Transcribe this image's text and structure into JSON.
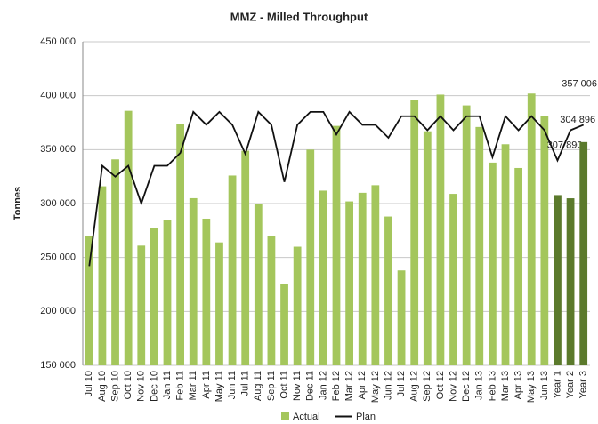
{
  "chart_data": {
    "type": "bar_line",
    "title": "MMZ - Milled Throughput",
    "ylabel": "Tonnes",
    "categories": [
      "Jul 10",
      "Aug 10",
      "Sep 10",
      "Oct 10",
      "Nov 10",
      "Dec 10",
      "Jan 11",
      "Feb 11",
      "Mar 11",
      "Apr 11",
      "May 11",
      "Jun 11",
      "Jul 11",
      "Aug 11",
      "Sep 11",
      "Oct 11",
      "Nov 11",
      "Dec 11",
      "Jan 12",
      "Feb 12",
      "Mar 12",
      "Apr 12",
      "May 12",
      "Jun 12",
      "Jul 12",
      "Aug 12",
      "Sep 12",
      "Oct 12",
      "Nov 12",
      "Dec 12",
      "Jan 13",
      "Feb 13",
      "Mar 13",
      "Apr 13",
      "May 13",
      "Jun 13",
      "Year 1",
      "Year 2",
      "Year 3"
    ],
    "series": [
      {
        "name": "Actual",
        "type": "bar",
        "color": "#a4c65c",
        "colors": [
          "#a4c65c",
          "#a4c65c",
          "#a4c65c",
          "#a4c65c",
          "#a4c65c",
          "#a4c65c",
          "#a4c65c",
          "#a4c65c",
          "#a4c65c",
          "#a4c65c",
          "#a4c65c",
          "#a4c65c",
          "#a4c65c",
          "#a4c65c",
          "#a4c65c",
          "#a4c65c",
          "#a4c65c",
          "#a4c65c",
          "#a4c65c",
          "#a4c65c",
          "#a4c65c",
          "#a4c65c",
          "#a4c65c",
          "#a4c65c",
          "#a4c65c",
          "#a4c65c",
          "#a4c65c",
          "#a4c65c",
          "#a4c65c",
          "#a4c65c",
          "#a4c65c",
          "#a4c65c",
          "#a4c65c",
          "#a4c65c",
          "#a4c65c",
          "#a4c65c",
          "#5b7a2c",
          "#5b7a2c",
          "#5b7a2c"
        ],
        "values": [
          270000,
          316000,
          341000,
          386000,
          261000,
          277000,
          285000,
          374000,
          305000,
          286000,
          264000,
          326000,
          349000,
          300000,
          270000,
          225000,
          260000,
          350000,
          312000,
          372000,
          302000,
          310000,
          317000,
          288000,
          238000,
          396000,
          367000,
          401000,
          309000,
          391000,
          371000,
          338000,
          355000,
          333000,
          402000,
          381000,
          307890,
          304896,
          357006
        ],
        "value_labels": [
          null,
          null,
          null,
          null,
          null,
          null,
          null,
          null,
          null,
          null,
          null,
          null,
          null,
          null,
          null,
          null,
          null,
          null,
          null,
          null,
          null,
          null,
          null,
          null,
          null,
          null,
          null,
          null,
          null,
          null,
          null,
          null,
          null,
          null,
          null,
          null,
          "307 890",
          "304 896",
          "357 006"
        ]
      },
      {
        "name": "Plan",
        "type": "line",
        "color": "#111111",
        "values": [
          242000,
          335000,
          325000,
          335000,
          300000,
          335000,
          335000,
          347000,
          385000,
          373000,
          385000,
          373000,
          346000,
          385000,
          373000,
          320000,
          373000,
          385000,
          385000,
          364000,
          385000,
          373000,
          373000,
          361000,
          381000,
          381000,
          368000,
          381000,
          368000,
          381000,
          381000,
          343000,
          381000,
          368000,
          381000,
          368000,
          340000,
          368000,
          373000
        ]
      }
    ],
    "ylim": [
      150000,
      450000
    ],
    "yticks": [
      {
        "value": 150000,
        "label": "150 000"
      },
      {
        "value": 200000,
        "label": "200 000"
      },
      {
        "value": 250000,
        "label": "250 000"
      },
      {
        "value": 300000,
        "label": "300 000"
      },
      {
        "value": 350000,
        "label": "350 000"
      },
      {
        "value": 400000,
        "label": "400 000"
      },
      {
        "value": 450000,
        "label": "450 000"
      }
    ],
    "grid": true,
    "legend": "bottom"
  }
}
